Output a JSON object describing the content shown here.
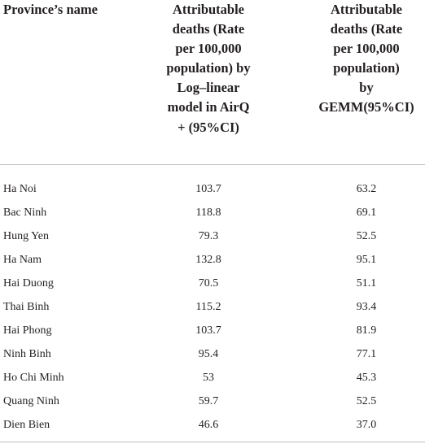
{
  "headers": {
    "province": "Province’s name",
    "airq": "Attributable\ndeaths (Rate\nper 100,000\npopulation) by\nLog–linear\nmodel in AirQ\n+ (95%CI)",
    "gemm": "Attributable\ndeaths (Rate\nper 100,000\npopulation)\nby\nGEMM(95%CI)"
  },
  "rows": [
    {
      "province": "Ha Noi",
      "airq": "103.7",
      "gemm": "63.2"
    },
    {
      "province": "Bac Ninh",
      "airq": "118.8",
      "gemm": "69.1"
    },
    {
      "province": "Hung Yen",
      "airq": "79.3",
      "gemm": "52.5"
    },
    {
      "province": "Ha Nam",
      "airq": "132.8",
      "gemm": "95.1"
    },
    {
      "province": "Hai Duong",
      "airq": "70.5",
      "gemm": "51.1"
    },
    {
      "province": "Thai Binh",
      "airq": "115.2",
      "gemm": "93.4"
    },
    {
      "province": "Hai Phong",
      "airq": "103.7",
      "gemm": "81.9"
    },
    {
      "province": "Ninh Binh",
      "airq": "95.4",
      "gemm": "77.1"
    },
    {
      "province": "Ho Chi Minh",
      "airq": "53",
      "gemm": "45.3"
    },
    {
      "province": "Quang Ninh",
      "airq": "59.7",
      "gemm": "52.5"
    },
    {
      "province": "Dien Bien",
      "airq": "46.6",
      "gemm": "37.0"
    }
  ]
}
